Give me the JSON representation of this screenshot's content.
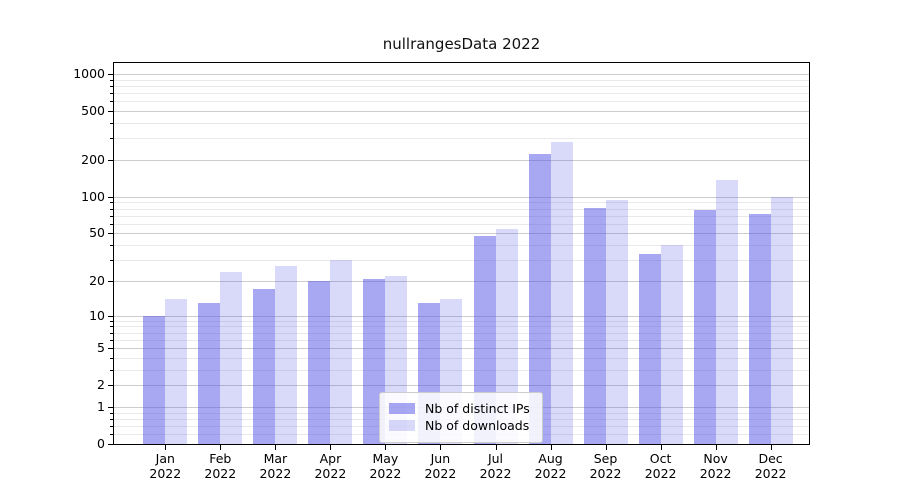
{
  "figure_title": "nullrangesData 2022",
  "chart_data": {
    "type": "bar",
    "title": "nullrangesData 2022",
    "subtitle": "",
    "xlabel": "",
    "ylabel": "",
    "categories": [
      "Jan 2022",
      "Feb 2022",
      "Mar 2022",
      "Apr 2022",
      "May 2022",
      "Jun 2022",
      "Jul 2022",
      "Aug 2022",
      "Sep 2022",
      "Oct 2022",
      "Nov 2022",
      "Dec 2022"
    ],
    "month_labels": [
      "Jan",
      "Feb",
      "Mar",
      "Apr",
      "May",
      "Jun",
      "Jul",
      "Aug",
      "Sep",
      "Oct",
      "Nov",
      "Dec"
    ],
    "year_label": "2022",
    "series": [
      {
        "name": "Nb of distinct IPs",
        "color": "rgba(80,80,230,0.5)",
        "values": [
          10,
          13,
          17,
          20,
          21,
          13,
          48,
          224,
          81,
          34,
          78,
          73
        ]
      },
      {
        "name": "Nb of downloads",
        "color": "rgba(80,80,230,0.22)",
        "values": [
          14,
          24,
          27,
          30,
          22,
          14,
          54,
          283,
          95,
          40,
          138,
          99
        ]
      }
    ],
    "y_scale": "log1p",
    "ylim": [
      0,
      1250
    ],
    "y_major_ticks": [
      0,
      1,
      2,
      5,
      10,
      20,
      50,
      100,
      200,
      500,
      1000
    ],
    "y_major_tick_labels": [
      "0",
      "1",
      "2",
      "5",
      "10",
      "20",
      "50",
      "100",
      "200",
      "500",
      "1000"
    ],
    "y_minor_ticks": [
      0.2,
      0.4,
      0.6,
      0.8,
      3,
      4,
      6,
      7,
      8,
      9,
      30,
      40,
      60,
      70,
      80,
      90,
      300,
      400,
      600,
      700,
      800,
      900
    ],
    "grid": true,
    "legend_position": "lower center"
  },
  "colors": {
    "major_grid": "#cccccc",
    "minor_grid": "#e9e9e9",
    "spine": "#000000",
    "text": "#000000",
    "legend_border": "#cccccc",
    "bar_dark": "rgba(80,80,230,0.5)",
    "bar_light": "rgba(80,80,230,0.22)"
  }
}
